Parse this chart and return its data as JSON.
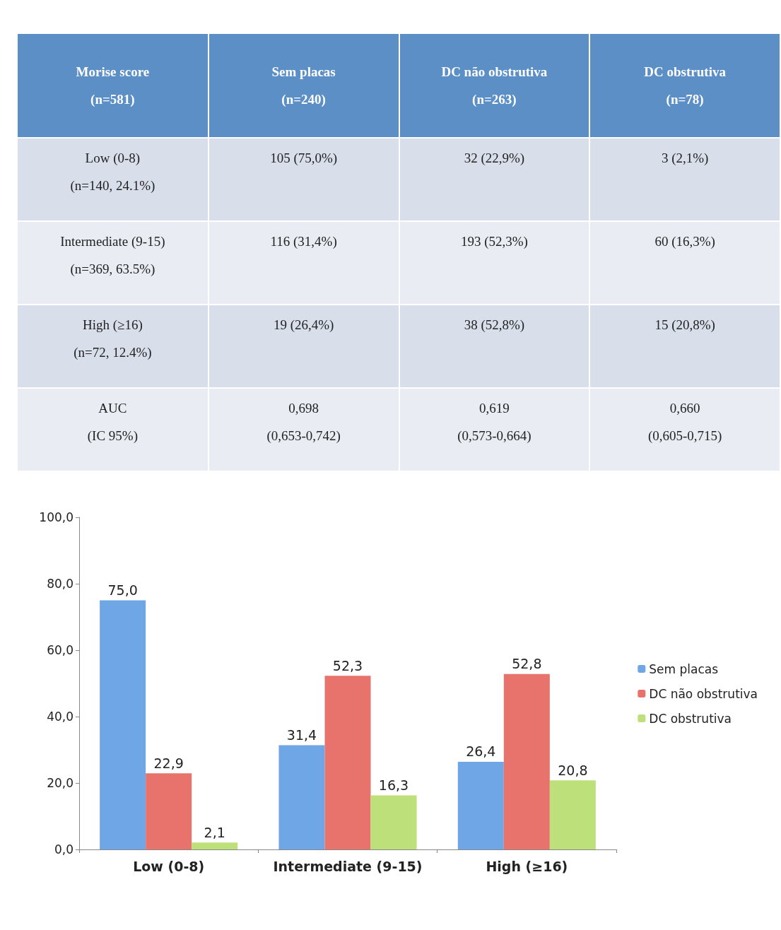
{
  "chart_data": [
    {
      "type": "other",
      "annotations": [
        "Morise score\n(n=581)",
        "Sem placas\n(n=240)",
        "DC não obstrutiva\n(n=263)",
        "DC obstrutiva\n(n=78)",
        "Low (0-8)\n(n=140, 24.1%)",
        "105 (75,0%)",
        "32 (22,9%)",
        "3 (2,1%)",
        "Intermediate (9-15)\n(n=369, 63.5%)",
        "116 (31,4%)",
        "193 (52,3%)",
        "60 (16,3%)",
        "High (≥16)\n(n=72, 12.4%)",
        "19 (26,4%)",
        "38 (52,8%)",
        "15 (20,8%)",
        "AUC\n(IC 95%)",
        "0,698\n(0,653-0,742)",
        "0,619\n(0,573-0,664)",
        "0,660\n(0,605-0,715)"
      ]
    },
    {
      "type": "bar",
      "categories": [
        "Low (0-8)",
        "Intermediate (9-15)",
        "High (≥16)"
      ],
      "series": [
        {
          "name": "Sem placas",
          "color": "#6fa6e6",
          "values": [
            75.0,
            31.4,
            26.4
          ],
          "value_labels": [
            "75,0",
            "31,4",
            "26,4"
          ]
        },
        {
          "name": "DC não obstrutiva",
          "color": "#e8736c",
          "values": [
            22.9,
            52.3,
            52.8
          ],
          "value_labels": [
            "22,9",
            "52,3",
            "52,8"
          ]
        },
        {
          "name": "DC obstrutiva",
          "color": "#bde07a",
          "values": [
            2.1,
            16.3,
            20.8
          ],
          "value_labels": [
            "2,1",
            "16,3",
            "20,8"
          ]
        }
      ],
      "ylim": [
        0,
        100
      ],
      "yticks": [
        {
          "value": 0,
          "label": "0,0"
        },
        {
          "value": 20,
          "label": "20,0"
        },
        {
          "value": 40,
          "label": "40,0"
        },
        {
          "value": 60,
          "label": "60,0"
        },
        {
          "value": 80,
          "label": "80,0"
        },
        {
          "value": 100,
          "label": "100,0"
        }
      ],
      "grid": false,
      "legend": "right"
    }
  ]
}
